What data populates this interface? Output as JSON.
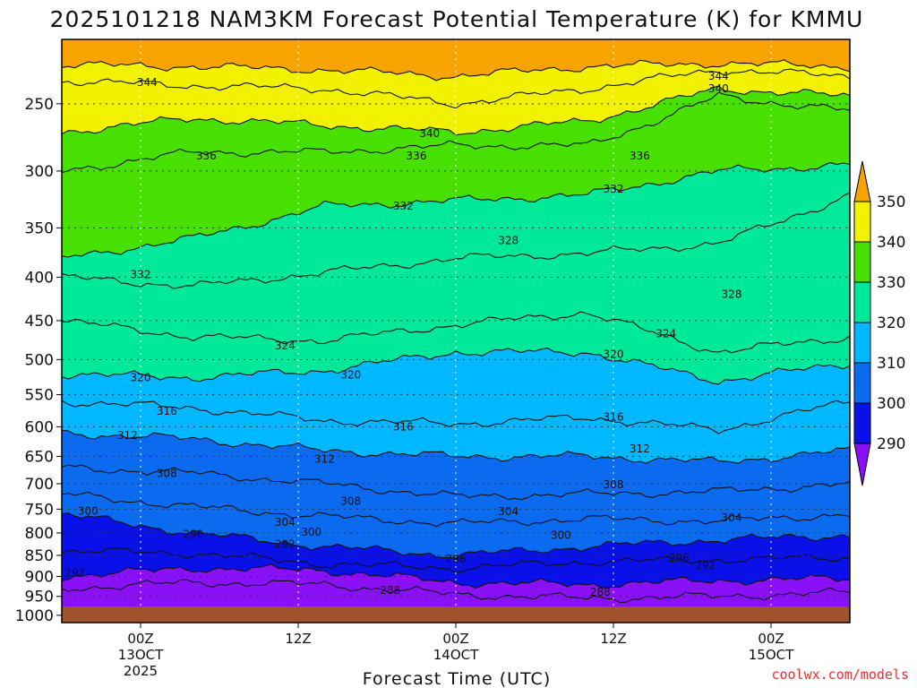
{
  "chart_data": {
    "type": "contour-time-height",
    "title": "2025101218 NAM3KM Forecast Potential Temperature (K) for KMMU",
    "xlabel": "Forecast Time (UTC)",
    "ylabel": "Pressure (hPa)",
    "y_ticks": [
      250,
      300,
      350,
      400,
      450,
      500,
      550,
      600,
      650,
      700,
      750,
      800,
      850,
      900,
      950,
      1000
    ],
    "ylim": [
      210,
      1020
    ],
    "x_ticks": [
      {
        "hour": 6,
        "label": "00Z",
        "sub1": "13OCT",
        "sub2": "2025"
      },
      {
        "hour": 18,
        "label": "12Z",
        "sub1": "",
        "sub2": ""
      },
      {
        "hour": 30,
        "label": "00Z",
        "sub1": "14OCT",
        "sub2": ""
      },
      {
        "hour": 42,
        "label": "12Z",
        "sub1": "",
        "sub2": ""
      },
      {
        "hour": 54,
        "label": "00Z",
        "sub1": "15OCT",
        "sub2": ""
      }
    ],
    "xlim": [
      0,
      60
    ],
    "colorbar": {
      "levels": [
        350,
        340,
        330,
        320,
        310,
        300,
        290
      ],
      "colors": [
        "#f7a400",
        "#f2f200",
        "#48e000",
        "#00e89a",
        "#00b8ff",
        "#0a6af0",
        "#0a10e8",
        "#8a10f8"
      ]
    },
    "isentropes": [
      {
        "theta": 288,
        "profile": [
          [
            0,
            930
          ],
          [
            10,
            915
          ],
          [
            20,
            920
          ],
          [
            30,
            945
          ],
          [
            40,
            955
          ],
          [
            50,
            950
          ],
          [
            60,
            940
          ]
        ]
      },
      {
        "theta": 292,
        "profile": [
          [
            0,
            900
          ],
          [
            10,
            880
          ],
          [
            20,
            885
          ],
          [
            30,
            915
          ],
          [
            40,
            920
          ],
          [
            50,
            910
          ],
          [
            60,
            905
          ]
        ]
      },
      {
        "theta": 296,
        "profile": [
          [
            0,
            840
          ],
          [
            10,
            845
          ],
          [
            20,
            870
          ],
          [
            30,
            880
          ],
          [
            40,
            865
          ],
          [
            50,
            860
          ],
          [
            60,
            855
          ]
        ]
      },
      {
        "theta": 300,
        "profile": [
          [
            0,
            760
          ],
          [
            10,
            800
          ],
          [
            20,
            830
          ],
          [
            30,
            850
          ],
          [
            40,
            830
          ],
          [
            50,
            815
          ],
          [
            60,
            805
          ]
        ]
      },
      {
        "theta": 304,
        "profile": [
          [
            0,
            720
          ],
          [
            10,
            745
          ],
          [
            20,
            765
          ],
          [
            30,
            780
          ],
          [
            40,
            770
          ],
          [
            50,
            775
          ],
          [
            60,
            760
          ]
        ]
      },
      {
        "theta": 308,
        "profile": [
          [
            0,
            670
          ],
          [
            10,
            680
          ],
          [
            20,
            700
          ],
          [
            30,
            725
          ],
          [
            40,
            720
          ],
          [
            50,
            715
          ],
          [
            60,
            700
          ]
        ]
      },
      {
        "theta": 312,
        "profile": [
          [
            0,
            610
          ],
          [
            10,
            620
          ],
          [
            20,
            640
          ],
          [
            30,
            650
          ],
          [
            40,
            650
          ],
          [
            50,
            660
          ],
          [
            60,
            640
          ]
        ]
      },
      {
        "theta": 316,
        "profile": [
          [
            0,
            560
          ],
          [
            10,
            570
          ],
          [
            20,
            590
          ],
          [
            30,
            595
          ],
          [
            40,
            585
          ],
          [
            50,
            605
          ],
          [
            60,
            560
          ]
        ]
      },
      {
        "theta": 320,
        "profile": [
          [
            0,
            520
          ],
          [
            10,
            525
          ],
          [
            20,
            515
          ],
          [
            30,
            490
          ],
          [
            40,
            490
          ],
          [
            50,
            530
          ],
          [
            60,
            505
          ]
        ]
      },
      {
        "theta": 324,
        "profile": [
          [
            0,
            450
          ],
          [
            10,
            470
          ],
          [
            20,
            475
          ],
          [
            30,
            455
          ],
          [
            40,
            440
          ],
          [
            50,
            490
          ],
          [
            60,
            470
          ]
        ]
      },
      {
        "theta": 328,
        "profile": [
          [
            0,
            400
          ],
          [
            10,
            410
          ],
          [
            20,
            395
          ],
          [
            30,
            380
          ],
          [
            40,
            375
          ],
          [
            50,
            365
          ],
          [
            60,
            320
          ]
        ]
      },
      {
        "theta": 332,
        "profile": [
          [
            0,
            380
          ],
          [
            10,
            360
          ],
          [
            20,
            330
          ],
          [
            30,
            325
          ],
          [
            40,
            320
          ],
          [
            50,
            300
          ],
          [
            60,
            295
          ]
        ]
      },
      {
        "theta": 336,
        "profile": [
          [
            0,
            300
          ],
          [
            10,
            285
          ],
          [
            20,
            285
          ],
          [
            30,
            280
          ],
          [
            40,
            280
          ],
          [
            50,
            245
          ],
          [
            60,
            255
          ]
        ]
      },
      {
        "theta": 340,
        "profile": [
          [
            0,
            270
          ],
          [
            10,
            260
          ],
          [
            20,
            265
          ],
          [
            30,
            270
          ],
          [
            40,
            262
          ],
          [
            50,
            240
          ],
          [
            60,
            245
          ]
        ]
      },
      {
        "theta": 344,
        "profile": [
          [
            0,
            235
          ],
          [
            10,
            238
          ],
          [
            20,
            240
          ],
          [
            30,
            250
          ],
          [
            40,
            240
          ],
          [
            50,
            228
          ],
          [
            60,
            232
          ]
        ]
      },
      {
        "theta": 348,
        "profile": [
          [
            0,
            225
          ],
          [
            10,
            226
          ],
          [
            20,
            228
          ],
          [
            30,
            232
          ],
          [
            40,
            226
          ],
          [
            50,
            224
          ],
          [
            60,
            226
          ]
        ]
      }
    ],
    "contour_labels": [
      {
        "text": "344",
        "hour": 6.5,
        "p": 236
      },
      {
        "text": "344",
        "hour": 50,
        "p": 232
      },
      {
        "text": "340",
        "hour": 50,
        "p": 240
      },
      {
        "text": "340",
        "hour": 28,
        "p": 271
      },
      {
        "text": "336",
        "hour": 11,
        "p": 288
      },
      {
        "text": "336",
        "hour": 27,
        "p": 288
      },
      {
        "text": "336",
        "hour": 44,
        "p": 288
      },
      {
        "text": "332",
        "hour": 26,
        "p": 330
      },
      {
        "text": "332",
        "hour": 42,
        "p": 315
      },
      {
        "text": "332",
        "hour": 6,
        "p": 397
      },
      {
        "text": "328",
        "hour": 34,
        "p": 362
      },
      {
        "text": "328",
        "hour": 51,
        "p": 419
      },
      {
        "text": "324",
        "hour": 17,
        "p": 482
      },
      {
        "text": "324",
        "hour": 46,
        "p": 466
      },
      {
        "text": "320",
        "hour": 42,
        "p": 493
      },
      {
        "text": "320",
        "hour": 22,
        "p": 521
      },
      {
        "text": "320",
        "hour": 6,
        "p": 525
      },
      {
        "text": "316",
        "hour": 8,
        "p": 575
      },
      {
        "text": "316",
        "hour": 26,
        "p": 600
      },
      {
        "text": "316",
        "hour": 42,
        "p": 584
      },
      {
        "text": "312",
        "hour": 5,
        "p": 614
      },
      {
        "text": "312",
        "hour": 20,
        "p": 655
      },
      {
        "text": "312",
        "hour": 44,
        "p": 637
      },
      {
        "text": "308",
        "hour": 8,
        "p": 681
      },
      {
        "text": "308",
        "hour": 22,
        "p": 734
      },
      {
        "text": "308",
        "hour": 42,
        "p": 702
      },
      {
        "text": "304",
        "hour": 17,
        "p": 777
      },
      {
        "text": "304",
        "hour": 34,
        "p": 755
      },
      {
        "text": "304",
        "hour": 51,
        "p": 768
      },
      {
        "text": "300",
        "hour": 2,
        "p": 754
      },
      {
        "text": "300",
        "hour": 19,
        "p": 798
      },
      {
        "text": "300",
        "hour": 38,
        "p": 805
      },
      {
        "text": "296",
        "hour": 10,
        "p": 803
      },
      {
        "text": "296",
        "hour": 30,
        "p": 859
      },
      {
        "text": "296",
        "hour": 47,
        "p": 856
      },
      {
        "text": "292",
        "hour": 1,
        "p": 891
      },
      {
        "text": "292",
        "hour": 17,
        "p": 825
      },
      {
        "text": "292",
        "hour": 49,
        "p": 874
      },
      {
        "text": "288",
        "hour": 25,
        "p": 935
      },
      {
        "text": "288",
        "hour": 41,
        "p": 939
      }
    ],
    "surface_color": "#a0522d"
  },
  "watermark": {
    "text": "coolwx.com/models",
    "color": "#e83030"
  }
}
